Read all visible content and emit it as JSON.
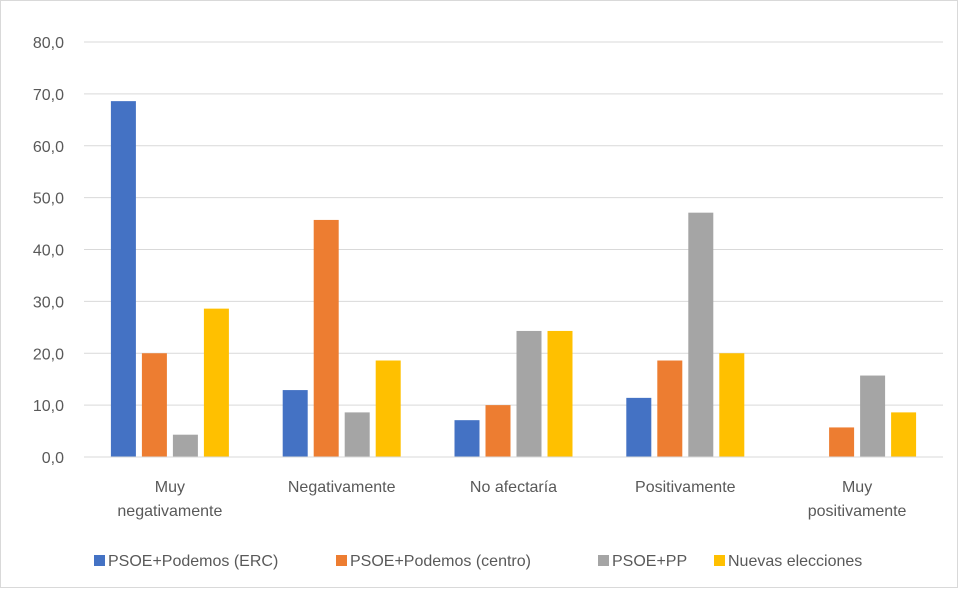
{
  "chart_data": {
    "type": "bar",
    "categories": [
      "Muy negativamente",
      "Negativamente",
      "No afectaría",
      "Positivamente",
      "Muy positivamente"
    ],
    "series": [
      {
        "name": "PSOE+Podemos (ERC)",
        "color": "#4472C4",
        "values": [
          68.6,
          12.9,
          7.1,
          11.4,
          0.0
        ]
      },
      {
        "name": "PSOE+Podemos (centro)",
        "color": "#ED7D31",
        "values": [
          20.0,
          45.7,
          10.0,
          18.6,
          5.7
        ]
      },
      {
        "name": "PSOE+PP",
        "color": "#A5A5A5",
        "values": [
          4.3,
          8.6,
          24.3,
          47.1,
          15.7
        ]
      },
      {
        "name": "Nuevas elecciones",
        "color": "#FFC000",
        "values": [
          28.6,
          18.6,
          24.3,
          20.0,
          8.6
        ]
      }
    ],
    "ylim": [
      0,
      80
    ],
    "yticks": [
      "0,0",
      "10,0",
      "20,0",
      "30,0",
      "40,0",
      "50,0",
      "60,0",
      "70,0",
      "80,0"
    ],
    "grid": true,
    "legend_position": "bottom"
  }
}
